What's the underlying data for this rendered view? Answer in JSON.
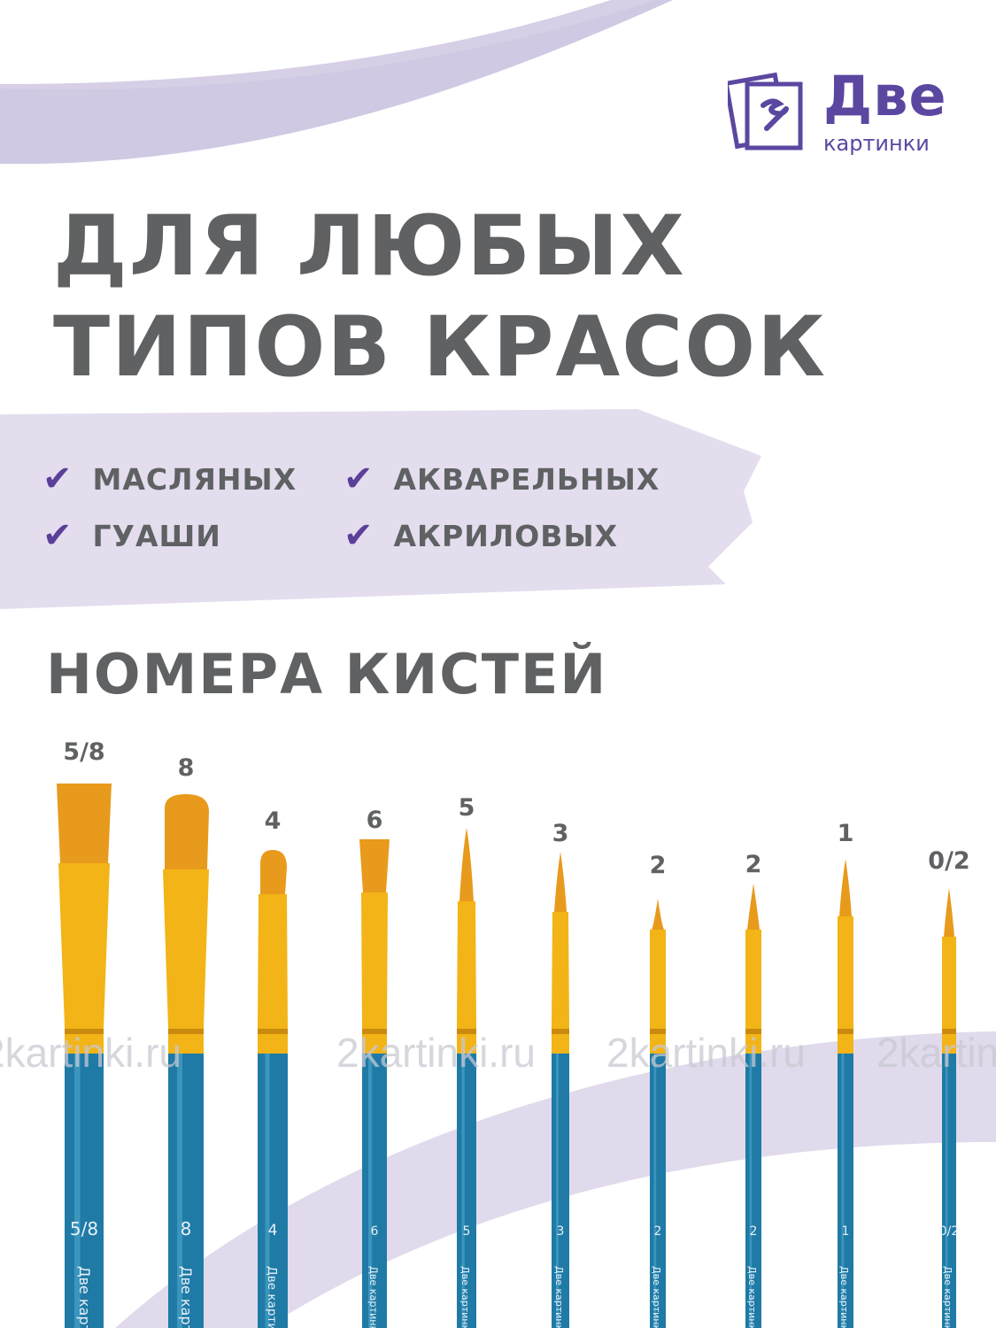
{
  "logo": {
    "line1": "Две",
    "line2": "картинки",
    "icon": "paintbrush-pictures-icon"
  },
  "headline": {
    "line1": "ДЛЯ ЛЮБЫХ",
    "line2": "ТИПОВ КРАСОК"
  },
  "features": [
    {
      "label": "МАСЛЯНЫХ",
      "icon": "checkmark-icon"
    },
    {
      "label": "АКВАРЕЛЬНЫХ",
      "icon": "checkmark-icon"
    },
    {
      "label": "ГУАШИ",
      "icon": "checkmark-icon"
    },
    {
      "label": "АКРИЛОВЫХ",
      "icon": "checkmark-icon"
    }
  ],
  "check_glyph": "✔",
  "subheading": "НОМЕРА КИСТЕЙ",
  "brushes": [
    {
      "size": "5/8",
      "shape": "flat"
    },
    {
      "size": "8",
      "shape": "oval"
    },
    {
      "size": "4",
      "shape": "oval"
    },
    {
      "size": "6",
      "shape": "flat"
    },
    {
      "size": "5",
      "shape": "round"
    },
    {
      "size": "3",
      "shape": "round"
    },
    {
      "size": "2",
      "shape": "round"
    },
    {
      "size": "2",
      "shape": "round"
    },
    {
      "size": "1",
      "shape": "round"
    },
    {
      "size": "0/2",
      "shape": "round"
    }
  ],
  "handle_brand": "Две картинки",
  "watermark": "2kartinki.ru",
  "colors": {
    "accent": "#5b3f98",
    "lavender": "#d6cfe6",
    "text": "#5f6163",
    "bristle": "#e89a1c",
    "ferrule": "#f2b417",
    "handle": "#1f7aa6"
  }
}
